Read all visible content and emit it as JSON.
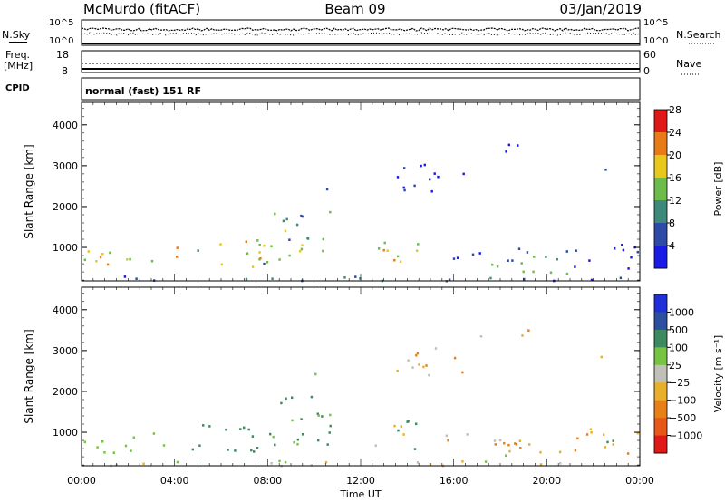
{
  "header": {
    "station": "McMurdo (fitACF)",
    "beam": "Beam 09",
    "date": "03/Jan/2019",
    "cpid_label": "CPID",
    "cpid_value": "normal (fast) 151 RF"
  },
  "top_panels": {
    "nsky": {
      "left_label": "N.Sky",
      "right_label": "N.Search",
      "left_ticks": [
        "10^5",
        "10^0"
      ],
      "right_ticks": [
        "10^5",
        "10^0"
      ]
    },
    "freq": {
      "left_label_line1": "Freq.",
      "left_label_line2": "[MHz]",
      "right_label": "Nave",
      "left_ticks": [
        "18",
        "8"
      ],
      "right_ticks": [
        "60",
        "0"
      ]
    }
  },
  "chart_data": [
    {
      "type": "heatmap",
      "name": "power",
      "ylabel": "Slant Range [km]",
      "ylim": [
        180,
        4550
      ],
      "yticks": [
        1000,
        2000,
        3000,
        4000
      ],
      "colorbar_label": "Power [dB]",
      "colorbar_ticks": [
        "4",
        "8",
        "12",
        "16",
        "20",
        "24",
        "28"
      ],
      "colors": [
        "#1a1ae6",
        "#2d4ba6",
        "#3e8a7a",
        "#6dbb4a",
        "#e8c81a",
        "#e87a18",
        "#e01818"
      ]
    },
    {
      "type": "heatmap",
      "name": "velocity",
      "ylabel": "Slant Range [km]",
      "ylim": [
        180,
        4550
      ],
      "yticks": [
        1000,
        2000,
        3000,
        4000
      ],
      "colorbar_label": "Velocity [m s⁻¹]",
      "colorbar_ticks": [
        "1000",
        "500",
        "100",
        "25",
        "−25",
        "−100",
        "−500",
        "−1000"
      ],
      "colors": [
        "#2030d8",
        "#2d4fa0",
        "#3e8a60",
        "#76c442",
        "#c0c0b8",
        "#e8b02a",
        "#e88018",
        "#e85818",
        "#e01818"
      ]
    }
  ],
  "xaxis": {
    "xlabel": "Time UT",
    "xticks": [
      "00:00",
      "04:00",
      "08:00",
      "12:00",
      "16:00",
      "20:00",
      "00:00"
    ]
  }
}
